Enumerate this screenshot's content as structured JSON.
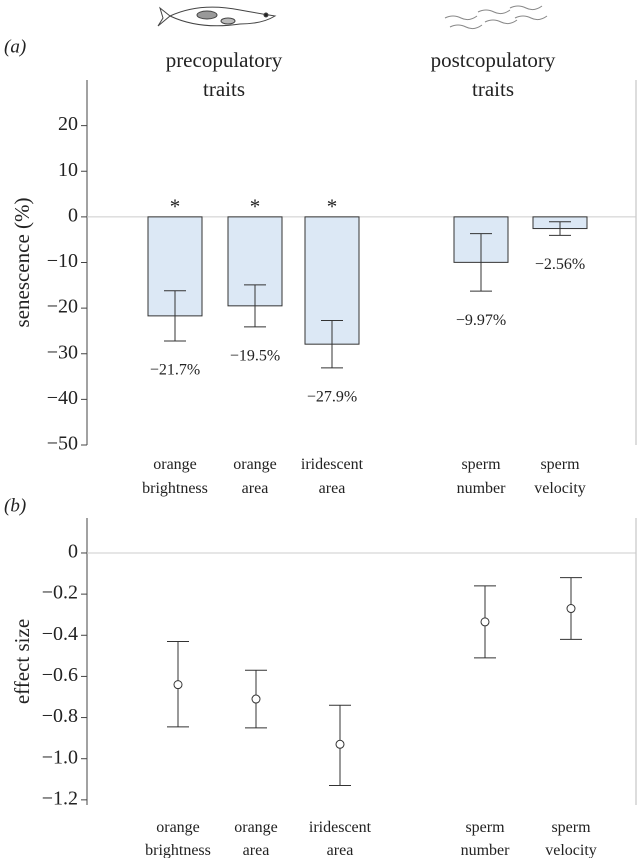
{
  "chart_data": [
    {
      "type": "bar",
      "panel_label": "(a)",
      "ylabel": "senescence (%)",
      "group_labels": [
        "precopulatory\ntraits",
        "postcopulatory\ntraits"
      ],
      "categories": [
        "orange\nbrightness",
        "orange\narea",
        "iridescent\narea",
        "sperm\nnumber",
        "sperm\nvelocity"
      ],
      "values": [
        -21.7,
        -19.5,
        -27.9,
        -9.97,
        -2.56
      ],
      "value_labels": [
        "−21.7%",
        "−19.5%",
        "−27.9%",
        "−9.97%",
        "−2.56%"
      ],
      "errors": [
        5.5,
        4.6,
        5.2,
        6.3,
        1.5
      ],
      "significance": [
        "*",
        "*",
        "*",
        null,
        null
      ],
      "color": "#dce8f5",
      "ylim": [
        -50,
        30
      ],
      "yticks": [
        {
          "value": -50,
          "label": "−50"
        },
        {
          "value": -40,
          "label": "−40"
        },
        {
          "value": -30,
          "label": "−30"
        },
        {
          "value": -20,
          "label": "−20"
        },
        {
          "value": -10,
          "label": "−10"
        },
        0,
        10,
        20
      ]
    },
    {
      "type": "pointrange",
      "panel_label": "(b)",
      "ylabel": "effect size",
      "categories": [
        "orange\nbrightness",
        "orange\narea",
        "iridescent\narea",
        "sperm\nnumber",
        "sperm\nvelocity"
      ],
      "values": [
        -0.64,
        -0.71,
        -0.93,
        -0.335,
        -0.27
      ],
      "ci_low": [
        -0.845,
        -0.85,
        -1.13,
        -0.51,
        -0.42
      ],
      "ci_high": [
        -0.43,
        -0.57,
        -0.74,
        -0.16,
        -0.12
      ],
      "ylim": [
        -1.225,
        0.17
      ],
      "yticks": [
        {
          "value": -1.2,
          "label": "−1.2"
        },
        {
          "value": -1.0,
          "label": "−1.0"
        },
        {
          "value": -0.8,
          "label": "−0.8"
        },
        {
          "value": -0.6,
          "label": "−0.6"
        },
        {
          "value": -0.4,
          "label": "−0.4"
        },
        {
          "value": -0.2,
          "label": "−0.2"
        },
        0
      ]
    }
  ]
}
